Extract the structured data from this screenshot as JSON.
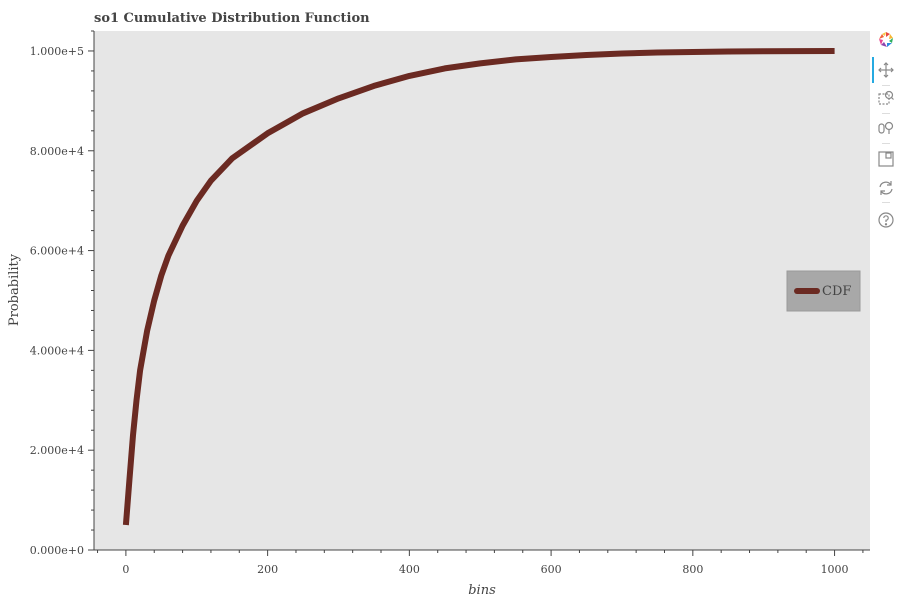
{
  "chart_data": {
    "type": "line",
    "title": "so1 Cumulative Distribution Function",
    "xlabel": "bins",
    "ylabel": "Probability",
    "xlim": [
      -45,
      1050
    ],
    "ylim": [
      0,
      104000
    ],
    "x_ticks": [
      0,
      200,
      400,
      600,
      800,
      1000
    ],
    "x_tick_labels": [
      "0",
      "200",
      "400",
      "600",
      "800",
      "1000"
    ],
    "y_ticks": [
      0,
      20000,
      40000,
      60000,
      80000,
      100000
    ],
    "y_tick_labels": [
      "0.000e+0",
      "2.000e+4",
      "4.000e+4",
      "6.000e+4",
      "8.000e+4",
      "1.000e+5"
    ],
    "grid": false,
    "background_color": "#e6e6e6",
    "legend_position": "center-right",
    "series": [
      {
        "name": "CDF",
        "color": "#6b2a22",
        "x": [
          0,
          5,
          10,
          15,
          20,
          30,
          40,
          50,
          60,
          80,
          100,
          120,
          150,
          200,
          250,
          300,
          350,
          400,
          450,
          500,
          550,
          600,
          650,
          700,
          750,
          800,
          850,
          900,
          950,
          1000
        ],
        "y": [
          5000,
          14000,
          23000,
          30000,
          36000,
          44000,
          50000,
          55000,
          59000,
          65000,
          70000,
          74000,
          78500,
          83500,
          87500,
          90500,
          93000,
          95000,
          96500,
          97500,
          98300,
          98800,
          99200,
          99500,
          99700,
          99800,
          99900,
          99950,
          99980,
          100000
        ]
      }
    ]
  },
  "toolbar": {
    "tools": [
      "bokeh-logo-icon",
      "pan-icon",
      "box-zoom-icon",
      "wheel-zoom-icon",
      "save-icon",
      "reset-icon",
      "help-icon"
    ]
  }
}
